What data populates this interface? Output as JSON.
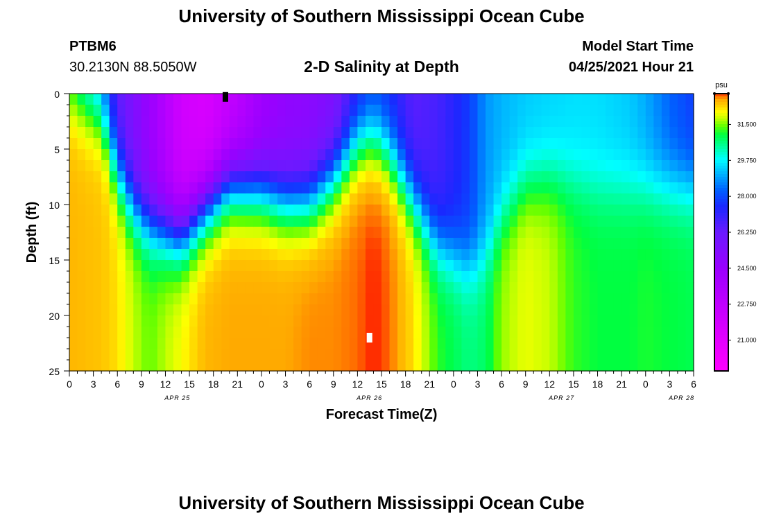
{
  "page": {
    "title_top": "University of Southern Mississippi Ocean Cube",
    "title_bottom": "University of Southern Mississippi Ocean Cube",
    "station_id": "PTBM6",
    "station_coords": "30.2130N  88.5050W",
    "plot_title": "2-D Salinity at Depth",
    "model_start_label": "Model Start Time",
    "model_start_value": "04/25/2021 Hour 21"
  },
  "chart_data": {
    "type": "heatmap",
    "title": "2-D Salinity at Depth",
    "xlabel": "Forecast Time(Z)",
    "ylabel": "Depth (ft)",
    "x_tick_labels": [
      "0",
      "3",
      "6",
      "9",
      "12",
      "15",
      "18",
      "21",
      "0",
      "3",
      "6",
      "9",
      "12",
      "15",
      "18",
      "21",
      "0",
      "3",
      "6",
      "9",
      "12",
      "15",
      "18",
      "21",
      "0",
      "3",
      "6"
    ],
    "date_labels": [
      {
        "label": "APR 25",
        "tick_index": 4.5
      },
      {
        "label": "APR 26",
        "tick_index": 12.5
      },
      {
        "label": "APR 27",
        "tick_index": 20.5
      },
      {
        "label": "APR 28",
        "tick_index": 25.5
      }
    ],
    "x_range_hours": [
      0,
      78
    ],
    "ylim": [
      25,
      0
    ],
    "y_ticks": [
      0,
      5,
      10,
      15,
      20,
      25
    ],
    "colorbar": {
      "unit": "psu",
      "min": 19.5,
      "max": 33.0,
      "tick_values": [
        31.5,
        29.75,
        28.0,
        26.25,
        24.5,
        22.75,
        21.0
      ],
      "tick_labels": [
        "31.500",
        "29.750",
        "28.000",
        "26.250",
        "24.500",
        "22.750",
        "21.000"
      ],
      "stops": [
        {
          "value": 19.5,
          "color": "#ff00ff"
        },
        {
          "value": 21.0,
          "color": "#e400ff"
        },
        {
          "value": 22.75,
          "color": "#c000ff"
        },
        {
          "value": 24.5,
          "color": "#9a00ff"
        },
        {
          "value": 26.25,
          "color": "#6a1aff"
        },
        {
          "value": 27.5,
          "color": "#1a28ff"
        },
        {
          "value": 28.3,
          "color": "#0060ff"
        },
        {
          "value": 29.2,
          "color": "#00bfff"
        },
        {
          "value": 29.8,
          "color": "#00ffff"
        },
        {
          "value": 30.4,
          "color": "#00ffa0"
        },
        {
          "value": 31.0,
          "color": "#00ff40"
        },
        {
          "value": 31.4,
          "color": "#60ff00"
        },
        {
          "value": 31.8,
          "color": "#c8ff00"
        },
        {
          "value": 32.1,
          "color": "#ffff00"
        },
        {
          "value": 32.4,
          "color": "#ffd000"
        },
        {
          "value": 32.7,
          "color": "#ffaa00"
        },
        {
          "value": 32.9,
          "color": "#ff6a00"
        },
        {
          "value": 33.0,
          "color": "#ff1a00"
        }
      ]
    },
    "field_model": {
      "time_knots_hours": [
        0,
        4,
        6,
        8,
        10,
        14,
        17,
        20,
        24,
        27,
        30,
        33,
        36,
        38,
        40,
        43,
        46,
        50,
        52,
        54,
        57,
        60,
        63,
        66,
        70,
        72,
        75,
        78
      ],
      "halocline_depth_ft": [
        0.5,
        2,
        7,
        10,
        11.5,
        12.5,
        10,
        8,
        8.5,
        9.5,
        9.5,
        7.5,
        4.5,
        4,
        5.5,
        9.5,
        13.5,
        15.5,
        14.5,
        11,
        8,
        7.5,
        8,
        8.5,
        8.5,
        8.5,
        8.5,
        8.5
      ],
      "surface_salinity_psu": [
        30.5,
        28.5,
        26.5,
        25.5,
        24.5,
        22,
        21.5,
        22.5,
        24.2,
        24.8,
        25,
        25.5,
        27.2,
        27.8,
        27.5,
        26.5,
        26.8,
        27.8,
        28.8,
        29.1,
        29.3,
        29.4,
        29.5,
        29.5,
        29.3,
        29,
        28.3,
        27.8
      ],
      "bottom_salinity_psu": [
        32.6,
        32.5,
        32.3,
        31.8,
        31.4,
        32.1,
        32.6,
        32.7,
        32.7,
        32.7,
        32.8,
        32.8,
        32.9,
        33.0,
        32.9,
        32.3,
        31.2,
        30.6,
        30.8,
        31.6,
        32.0,
        31.8,
        31.2,
        31.0,
        31.0,
        31.1,
        31.0,
        30.9
      ]
    },
    "markers": [
      {
        "name": "surface-marker",
        "time_hours": 19.5,
        "depth_ft": 0.3,
        "color": "#000000"
      },
      {
        "name": "depth-marker",
        "time_hours": 37.5,
        "depth_ft": 22,
        "color": "#ffffff"
      }
    ]
  }
}
